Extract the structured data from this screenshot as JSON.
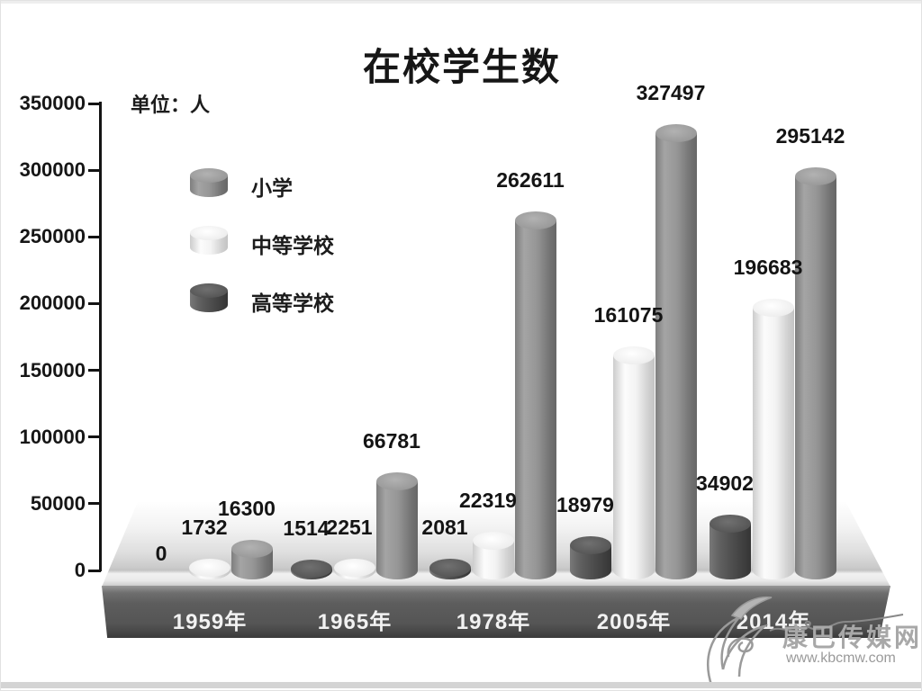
{
  "title": "在校学生数",
  "unit_label": "单位：人",
  "chart_data": {
    "type": "bar",
    "title": "在校学生数",
    "ylabel": "单位：人",
    "categories": [
      "1959年",
      "1965年",
      "1978年",
      "2005年",
      "2014年"
    ],
    "series": [
      {
        "name": "小学",
        "color": "#8e8e8e",
        "values": [
          16300,
          66781,
          262611,
          327497,
          295142
        ]
      },
      {
        "name": "中等学校",
        "color": "#e8e8e8",
        "values": [
          1732,
          2251,
          22319,
          161075,
          196683
        ]
      },
      {
        "name": "高等学校",
        "color": "#474747",
        "values": [
          0,
          1514,
          2081,
          18979,
          34902
        ]
      }
    ],
    "y_ticks": [
      0,
      50000,
      100000,
      150000,
      200000,
      250000,
      300000,
      350000
    ],
    "ylim": [
      0,
      350000
    ],
    "grid": false,
    "legend_position": "upper-left",
    "bar_value_labels_shown": true
  },
  "watermark": {
    "site_name": "康巴传媒网",
    "site_url": "www.kbcmw.com",
    "logo": "leaf-swoosh-icon"
  }
}
